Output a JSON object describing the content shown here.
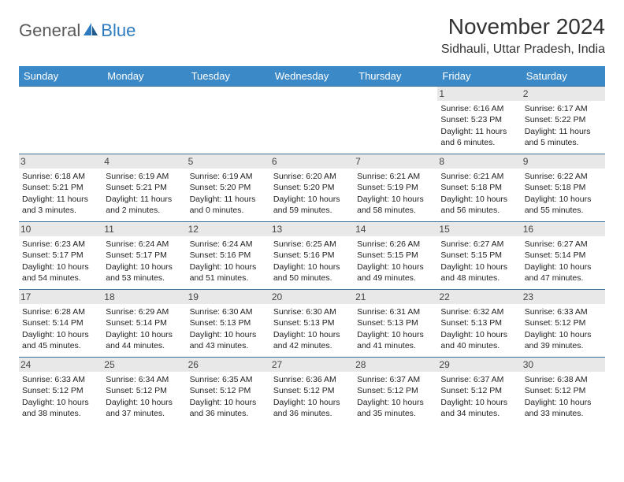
{
  "logo": {
    "text1": "General",
    "text2": "Blue"
  },
  "title": "November 2024",
  "location": "Sidhauli, Uttar Pradesh, India",
  "colors": {
    "header_bg": "#3b89c7",
    "header_text": "#ffffff",
    "row_border": "#3b6f9c",
    "daynum_bg": "#e8e8e8",
    "text": "#222222",
    "logo_gray": "#5a5a5a",
    "logo_blue": "#2f7bbf"
  },
  "dayNames": [
    "Sunday",
    "Monday",
    "Tuesday",
    "Wednesday",
    "Thursday",
    "Friday",
    "Saturday"
  ],
  "weeks": [
    [
      null,
      null,
      null,
      null,
      null,
      {
        "n": "1",
        "sr": "Sunrise: 6:16 AM",
        "ss": "Sunset: 5:23 PM",
        "dl": "Daylight: 11 hours and 6 minutes."
      },
      {
        "n": "2",
        "sr": "Sunrise: 6:17 AM",
        "ss": "Sunset: 5:22 PM",
        "dl": "Daylight: 11 hours and 5 minutes."
      }
    ],
    [
      {
        "n": "3",
        "sr": "Sunrise: 6:18 AM",
        "ss": "Sunset: 5:21 PM",
        "dl": "Daylight: 11 hours and 3 minutes."
      },
      {
        "n": "4",
        "sr": "Sunrise: 6:19 AM",
        "ss": "Sunset: 5:21 PM",
        "dl": "Daylight: 11 hours and 2 minutes."
      },
      {
        "n": "5",
        "sr": "Sunrise: 6:19 AM",
        "ss": "Sunset: 5:20 PM",
        "dl": "Daylight: 11 hours and 0 minutes."
      },
      {
        "n": "6",
        "sr": "Sunrise: 6:20 AM",
        "ss": "Sunset: 5:20 PM",
        "dl": "Daylight: 10 hours and 59 minutes."
      },
      {
        "n": "7",
        "sr": "Sunrise: 6:21 AM",
        "ss": "Sunset: 5:19 PM",
        "dl": "Daylight: 10 hours and 58 minutes."
      },
      {
        "n": "8",
        "sr": "Sunrise: 6:21 AM",
        "ss": "Sunset: 5:18 PM",
        "dl": "Daylight: 10 hours and 56 minutes."
      },
      {
        "n": "9",
        "sr": "Sunrise: 6:22 AM",
        "ss": "Sunset: 5:18 PM",
        "dl": "Daylight: 10 hours and 55 minutes."
      }
    ],
    [
      {
        "n": "10",
        "sr": "Sunrise: 6:23 AM",
        "ss": "Sunset: 5:17 PM",
        "dl": "Daylight: 10 hours and 54 minutes."
      },
      {
        "n": "11",
        "sr": "Sunrise: 6:24 AM",
        "ss": "Sunset: 5:17 PM",
        "dl": "Daylight: 10 hours and 53 minutes."
      },
      {
        "n": "12",
        "sr": "Sunrise: 6:24 AM",
        "ss": "Sunset: 5:16 PM",
        "dl": "Daylight: 10 hours and 51 minutes."
      },
      {
        "n": "13",
        "sr": "Sunrise: 6:25 AM",
        "ss": "Sunset: 5:16 PM",
        "dl": "Daylight: 10 hours and 50 minutes."
      },
      {
        "n": "14",
        "sr": "Sunrise: 6:26 AM",
        "ss": "Sunset: 5:15 PM",
        "dl": "Daylight: 10 hours and 49 minutes."
      },
      {
        "n": "15",
        "sr": "Sunrise: 6:27 AM",
        "ss": "Sunset: 5:15 PM",
        "dl": "Daylight: 10 hours and 48 minutes."
      },
      {
        "n": "16",
        "sr": "Sunrise: 6:27 AM",
        "ss": "Sunset: 5:14 PM",
        "dl": "Daylight: 10 hours and 47 minutes."
      }
    ],
    [
      {
        "n": "17",
        "sr": "Sunrise: 6:28 AM",
        "ss": "Sunset: 5:14 PM",
        "dl": "Daylight: 10 hours and 45 minutes."
      },
      {
        "n": "18",
        "sr": "Sunrise: 6:29 AM",
        "ss": "Sunset: 5:14 PM",
        "dl": "Daylight: 10 hours and 44 minutes."
      },
      {
        "n": "19",
        "sr": "Sunrise: 6:30 AM",
        "ss": "Sunset: 5:13 PM",
        "dl": "Daylight: 10 hours and 43 minutes."
      },
      {
        "n": "20",
        "sr": "Sunrise: 6:30 AM",
        "ss": "Sunset: 5:13 PM",
        "dl": "Daylight: 10 hours and 42 minutes."
      },
      {
        "n": "21",
        "sr": "Sunrise: 6:31 AM",
        "ss": "Sunset: 5:13 PM",
        "dl": "Daylight: 10 hours and 41 minutes."
      },
      {
        "n": "22",
        "sr": "Sunrise: 6:32 AM",
        "ss": "Sunset: 5:13 PM",
        "dl": "Daylight: 10 hours and 40 minutes."
      },
      {
        "n": "23",
        "sr": "Sunrise: 6:33 AM",
        "ss": "Sunset: 5:12 PM",
        "dl": "Daylight: 10 hours and 39 minutes."
      }
    ],
    [
      {
        "n": "24",
        "sr": "Sunrise: 6:33 AM",
        "ss": "Sunset: 5:12 PM",
        "dl": "Daylight: 10 hours and 38 minutes."
      },
      {
        "n": "25",
        "sr": "Sunrise: 6:34 AM",
        "ss": "Sunset: 5:12 PM",
        "dl": "Daylight: 10 hours and 37 minutes."
      },
      {
        "n": "26",
        "sr": "Sunrise: 6:35 AM",
        "ss": "Sunset: 5:12 PM",
        "dl": "Daylight: 10 hours and 36 minutes."
      },
      {
        "n": "27",
        "sr": "Sunrise: 6:36 AM",
        "ss": "Sunset: 5:12 PM",
        "dl": "Daylight: 10 hours and 36 minutes."
      },
      {
        "n": "28",
        "sr": "Sunrise: 6:37 AM",
        "ss": "Sunset: 5:12 PM",
        "dl": "Daylight: 10 hours and 35 minutes."
      },
      {
        "n": "29",
        "sr": "Sunrise: 6:37 AM",
        "ss": "Sunset: 5:12 PM",
        "dl": "Daylight: 10 hours and 34 minutes."
      },
      {
        "n": "30",
        "sr": "Sunrise: 6:38 AM",
        "ss": "Sunset: 5:12 PM",
        "dl": "Daylight: 10 hours and 33 minutes."
      }
    ]
  ]
}
